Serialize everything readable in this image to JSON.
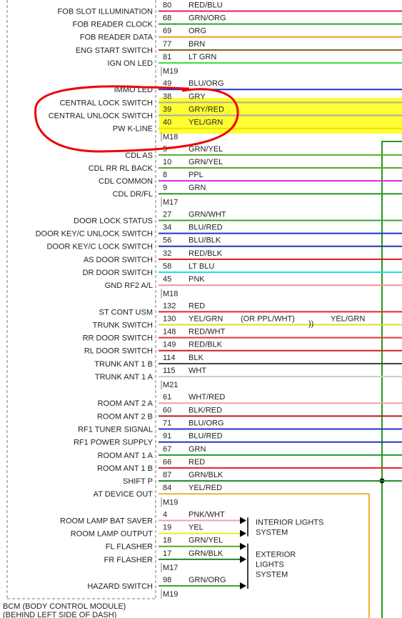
{
  "module": {
    "title": "BCM (BODY CONTROL MODULE)",
    "subtitle": "(BEHIND LEFT SIDE OF DASH)"
  },
  "groups": [
    {
      "connector": "M19",
      "rows": [
        {
          "label": "FOB SLOT ILLUMINATION",
          "pin": "80",
          "color": "RED/BLU",
          "stroke": "#e8224e"
        },
        {
          "label": "FOB READER CLOCK",
          "pin": "68",
          "color": "GRN/ORG",
          "stroke": "#2aa02a"
        },
        {
          "label": "FOB READER DATA",
          "pin": "69",
          "color": "ORG",
          "stroke": "#f59a1c"
        },
        {
          "label": "ENG START SWITCH",
          "pin": "77",
          "color": "BRN",
          "stroke": "#8b5a2b"
        },
        {
          "label": "IGN ON LED",
          "pin": "81",
          "color": "LT GRN",
          "stroke": "#33dd33"
        }
      ]
    },
    {
      "connector": "M18",
      "rows": [
        {
          "label": "IMMO LED",
          "pin": "49",
          "color": "BLU/ORG",
          "stroke": "#2233cc"
        },
        {
          "label": "CENTRAL LOCK SWITCH",
          "pin": "38",
          "color": "GRY",
          "stroke": "#aaaaaa"
        },
        {
          "label": "CENTRAL UNLOCK SWITCH",
          "pin": "39",
          "color": "GRY/RED",
          "stroke": "#aaaaaa"
        },
        {
          "label": "PW K-LINE",
          "pin": "40",
          "color": "YEL/GRN",
          "stroke": "#e6e600"
        }
      ]
    },
    {
      "connector": "M17",
      "rows": [
        {
          "label": "CDL AS",
          "pin": "5",
          "color": "GRN/YEL",
          "stroke": "#55aa22"
        },
        {
          "label": "CDL RR RL BACK",
          "pin": "10",
          "color": "GRN/YEL",
          "stroke": "#55aa22"
        },
        {
          "label": "CDL COMMON",
          "pin": "8",
          "color": "PPL",
          "stroke": "#dd22dd"
        },
        {
          "label": "CDL DR/FL",
          "pin": "9",
          "color": "GRN",
          "stroke": "#229922"
        }
      ]
    },
    {
      "connector": "M18",
      "rows": [
        {
          "label": "DOOR LOCK STATUS",
          "pin": "27",
          "color": "GRN/WHT",
          "stroke": "#33aa33"
        },
        {
          "label": "DOOR KEY/C UNLOCK SWITCH",
          "pin": "34",
          "color": "BLU/RED",
          "stroke": "#2233cc"
        },
        {
          "label": "DOOR KEY/C LOCK SWITCH",
          "pin": "56",
          "color": "BLU/BLK",
          "stroke": "#2233aa"
        },
        {
          "label": "AS DOOR SWITCH",
          "pin": "32",
          "color": "RED/BLK",
          "stroke": "#cc2222"
        },
        {
          "label": "DR DOOR SWITCH",
          "pin": "58",
          "color": "LT BLU",
          "stroke": "#22ddee"
        },
        {
          "label": "GND RF2 A/L",
          "pin": "45",
          "color": "PNK",
          "stroke": "#f090a0"
        }
      ]
    },
    {
      "connector": "M21",
      "rows": [
        {
          "label": "ST CONT USM",
          "pin": "132",
          "color": "RED",
          "stroke": "#ee2222"
        },
        {
          "label": "TRUNK SWITCH",
          "pin": "130",
          "color": "YEL/GRN",
          "stroke": "#dddd22",
          "note": "(OR PPL/WHT)",
          "far_color": "YEL/GRN"
        },
        {
          "label": "RR DOOR SWITCH",
          "pin": "148",
          "color": "RED/WHT",
          "stroke": "#ee3333"
        },
        {
          "label": "RL DOOR SWITCH",
          "pin": "149",
          "color": "RED/BLK",
          "stroke": "#cc2222"
        },
        {
          "label": "TRUNK ANT 1 B",
          "pin": "114",
          "color": "BLK",
          "stroke": "#444444"
        },
        {
          "label": "TRUNK ANT 1 A",
          "pin": "115",
          "color": "WHT",
          "stroke": "#cccccc"
        }
      ]
    },
    {
      "connector": "M19",
      "rows": [
        {
          "label": "ROOM ANT 2 A",
          "pin": "61",
          "color": "WHT/RED",
          "stroke": "#f0a0a0"
        },
        {
          "label": "ROOM ANT 2 B",
          "pin": "60",
          "color": "BLK/RED",
          "stroke": "#aa2222"
        },
        {
          "label": "RF1 TUNER SIGNAL",
          "pin": "71",
          "color": "BLU/ORG",
          "stroke": "#2233cc"
        },
        {
          "label": "RF1 POWER SUPPLY",
          "pin": "91",
          "color": "BLU/RED",
          "stroke": "#2233cc"
        },
        {
          "label": "ROOM ANT 1 A",
          "pin": "67",
          "color": "GRN",
          "stroke": "#229922"
        },
        {
          "label": "ROOM ANT 1 B",
          "pin": "66",
          "color": "RED",
          "stroke": "#ee2222"
        },
        {
          "label": "SHIFT P",
          "pin": "87",
          "color": "GRN/BLK",
          "stroke": "#228822"
        },
        {
          "label": "AT DEVICE OUT",
          "pin": "84",
          "color": "YEL/RED",
          "stroke": "#f0b030"
        }
      ]
    },
    {
      "connector": "M17",
      "rows": [
        {
          "label": "ROOM LAMP BAT SAVER",
          "pin": "4",
          "color": "PNK/WHT",
          "stroke": "#f0a0b0"
        },
        {
          "label": "ROOM LAMP OUTPUT",
          "pin": "19",
          "color": "YEL",
          "stroke": "#eeee22"
        },
        {
          "label": "FL FLASHER",
          "pin": "18",
          "color": "GRN/YEL",
          "stroke": "#55aa22"
        },
        {
          "label": "FR FLASHER",
          "pin": "17",
          "color": "GRN/BLK",
          "stroke": "#228822"
        }
      ]
    },
    {
      "connector": "M19",
      "rows": [
        {
          "label": "HAZARD SWITCH",
          "pin": "98",
          "color": "GRN/ORG",
          "stroke": "#33aa22"
        }
      ]
    }
  ],
  "destinations": [
    {
      "lines": [
        "INTERIOR LIGHTS",
        "SYSTEM"
      ]
    },
    {
      "lines": [
        "EXTERIOR",
        "LIGHTS",
        "SYSTEM"
      ]
    }
  ]
}
